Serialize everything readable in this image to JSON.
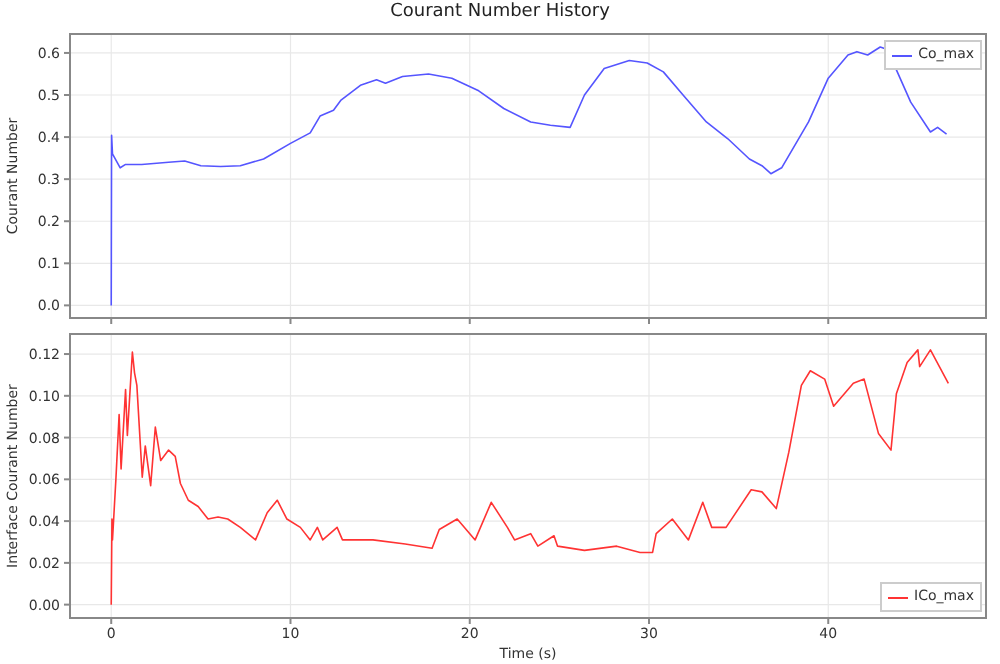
{
  "chart_data": [
    {
      "type": "line",
      "title": "Courant Number History",
      "ylabel": "Courant Number",
      "xlim": [
        -2.3,
        48.8
      ],
      "xticks": [
        0,
        10,
        20,
        30,
        40
      ],
      "ylim": [
        -0.03,
        0.645
      ],
      "yticks": [
        {
          "value": 0,
          "label": "0.0"
        },
        0.1,
        0.2,
        0.3,
        0.4,
        0.5,
        0.6
      ],
      "grid": true,
      "legend": "top right",
      "tick_labels": "y",
      "series": [
        {
          "name": "Co_max",
          "color": "#5555ff",
          "x": [
            0,
            0.02,
            0.07,
            0.5,
            0.8,
            1.7,
            3.2,
            4.1,
            5,
            6.1,
            7.2,
            8.5,
            10,
            11.1,
            11.65,
            12.4,
            12.8,
            13.9,
            14.8,
            15.3,
            16.25,
            17.7,
            19,
            20.5,
            21.9,
            23.4,
            24.5,
            25.6,
            26.4,
            27.5,
            28.9,
            29.9,
            30.8,
            31.9,
            33.2,
            34.4,
            35.6,
            36.3,
            36.8,
            37.4,
            38.9,
            40,
            41.1,
            41.6,
            42.2,
            42.9,
            43.3,
            44.6,
            45.7,
            46.1,
            46.6
          ],
          "values": [
            0,
            0.404,
            0.36,
            0.327,
            0.335,
            0.335,
            0.34,
            0.343,
            0.332,
            0.33,
            0.332,
            0.348,
            0.385,
            0.41,
            0.45,
            0.464,
            0.487,
            0.523,
            0.536,
            0.528,
            0.544,
            0.55,
            0.54,
            0.51,
            0.468,
            0.436,
            0.428,
            0.423,
            0.5,
            0.563,
            0.582,
            0.576,
            0.555,
            0.5,
            0.436,
            0.396,
            0.348,
            0.332,
            0.313,
            0.327,
            0.436,
            0.54,
            0.595,
            0.603,
            0.595,
            0.614,
            0.608,
            0.483,
            0.412,
            0.423,
            0.407
          ]
        }
      ]
    },
    {
      "type": "line",
      "xlabel": "Time (s)",
      "ylabel": "Interface Courant Number",
      "xlim": [
        -2.3,
        48.8
      ],
      "xticks": [
        0,
        10,
        20,
        30,
        40
      ],
      "ylim": [
        -0.0064,
        0.1296
      ],
      "yticks": [
        {
          "value": 0,
          "label": "0.00"
        },
        {
          "value": 0.02,
          "label": "0.02"
        },
        {
          "value": 0.04,
          "label": "0.04"
        },
        {
          "value": 0.06,
          "label": "0.06"
        },
        {
          "value": 0.08,
          "label": "0.08"
        },
        {
          "value": 0.1,
          "label": "0.10"
        },
        {
          "value": 0.12,
          "label": "0.12"
        }
      ],
      "grid": true,
      "legend": "bottom right",
      "series": [
        {
          "name": "ICo_max",
          "color": "#ff3333",
          "x": [
            0,
            0.04,
            0.07,
            0.26,
            0.44,
            0.55,
            0.8,
            0.9,
            1.18,
            1.3,
            1.43,
            1.73,
            1.9,
            2.2,
            2.46,
            2.76,
            3.2,
            3.57,
            3.86,
            4.3,
            4.85,
            5.4,
            5.96,
            6.5,
            7.2,
            8.05,
            8.7,
            9.26,
            9.8,
            10.55,
            11.1,
            11.5,
            11.8,
            12.6,
            12.9,
            14.6,
            16.4,
            17.9,
            18.3,
            19.3,
            20.3,
            21.2,
            22.1,
            22.5,
            23.4,
            23.8,
            24.7,
            24.9,
            26.4,
            28.2,
            29.5,
            30.2,
            30.4,
            31.3,
            32.2,
            33,
            33.5,
            34.3,
            35.7,
            36.3,
            37.1,
            37.8,
            38.5,
            39,
            39.8,
            40.3,
            41.4,
            42,
            42.8,
            43.5,
            43.8,
            44.4,
            45,
            45.1,
            45.7,
            46.2,
            46.7
          ],
          "values": [
            0,
            0.041,
            0.031,
            0.06,
            0.091,
            0.065,
            0.103,
            0.081,
            0.121,
            0.111,
            0.105,
            0.061,
            0.076,
            0.057,
            0.085,
            0.069,
            0.074,
            0.071,
            0.058,
            0.05,
            0.047,
            0.041,
            0.042,
            0.041,
            0.037,
            0.031,
            0.044,
            0.05,
            0.041,
            0.037,
            0.031,
            0.037,
            0.031,
            0.037,
            0.031,
            0.031,
            0.029,
            0.027,
            0.036,
            0.041,
            0.031,
            0.049,
            0.037,
            0.031,
            0.034,
            0.028,
            0.033,
            0.028,
            0.026,
            0.028,
            0.025,
            0.025,
            0.034,
            0.041,
            0.031,
            0.049,
            0.037,
            0.037,
            0.055,
            0.054,
            0.046,
            0.073,
            0.105,
            0.112,
            0.108,
            0.095,
            0.106,
            0.108,
            0.082,
            0.074,
            0.101,
            0.116,
            0.122,
            0.114,
            0.122,
            0.114,
            0.106
          ]
        }
      ]
    }
  ]
}
